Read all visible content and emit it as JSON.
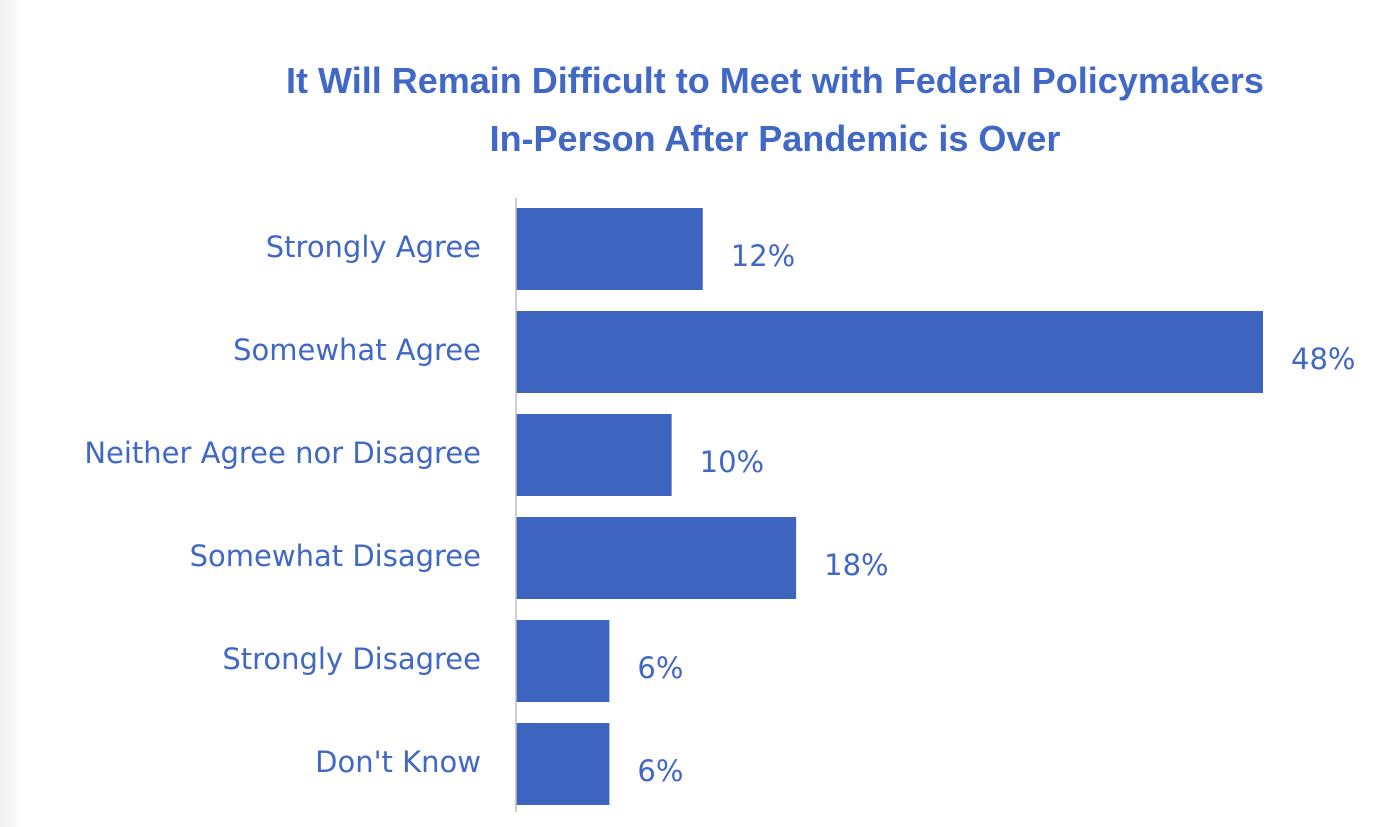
{
  "chart_data": {
    "type": "bar",
    "orientation": "horizontal",
    "title": "It Will Remain Difficult to Meet with Federal Policymakers In-Person After Pandemic is Over",
    "title_lines": [
      "It Will Remain Difficult to Meet with Federal Policymakers",
      "In-Person After Pandemic is Over"
    ],
    "categories": [
      "Strongly Agree",
      "Somewhat Agree",
      "Neither Agree nor Disagree",
      "Somewhat Disagree",
      "Strongly Disagree",
      "Don't Know"
    ],
    "values": [
      12,
      48,
      10,
      18,
      6,
      6
    ],
    "value_labels": [
      "12%",
      "48%",
      "10%",
      "18%",
      "6%",
      "6%"
    ],
    "unit": "%",
    "xlim": [
      0,
      48
    ],
    "grid": false,
    "legend": false,
    "xlabel": "",
    "ylabel": ""
  },
  "colors": {
    "bar": "#3d64bf",
    "text": "#4068c4",
    "axis": "#bfbfbf"
  }
}
